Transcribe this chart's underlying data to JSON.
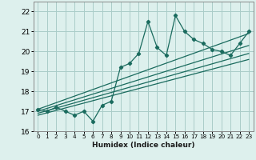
{
  "xlabel": "Humidex (Indice chaleur)",
  "bg_color": "#ddf0ed",
  "grid_color": "#aaccc8",
  "line_color": "#1a6b5e",
  "ylim": [
    16,
    22.5
  ],
  "xlim": [
    -0.5,
    23.5
  ],
  "yticks": [
    16,
    17,
    18,
    19,
    20,
    21,
    22
  ],
  "xticks": [
    0,
    1,
    2,
    3,
    4,
    5,
    6,
    7,
    8,
    9,
    10,
    11,
    12,
    13,
    14,
    15,
    16,
    17,
    18,
    19,
    20,
    21,
    22,
    23
  ],
  "data_x": [
    0,
    1,
    2,
    3,
    4,
    5,
    6,
    7,
    8,
    9,
    10,
    11,
    12,
    13,
    14,
    15,
    16,
    17,
    18,
    19,
    20,
    21,
    22,
    23
  ],
  "data_y": [
    17.1,
    17.0,
    17.2,
    17.0,
    16.8,
    17.0,
    16.5,
    17.3,
    17.5,
    19.2,
    19.4,
    19.9,
    21.5,
    20.2,
    19.8,
    21.8,
    21.0,
    20.6,
    20.4,
    20.1,
    20.0,
    19.8,
    20.4,
    21.0
  ],
  "reg_lines": [
    {
      "x0": 0,
      "y0": 17.1,
      "x1": 23,
      "y1": 20.9
    },
    {
      "x0": 0,
      "y0": 17.0,
      "x1": 23,
      "y1": 20.3
    },
    {
      "x0": 0,
      "y0": 16.9,
      "x1": 23,
      "y1": 19.9
    },
    {
      "x0": 0,
      "y0": 16.8,
      "x1": 23,
      "y1": 19.6
    }
  ]
}
